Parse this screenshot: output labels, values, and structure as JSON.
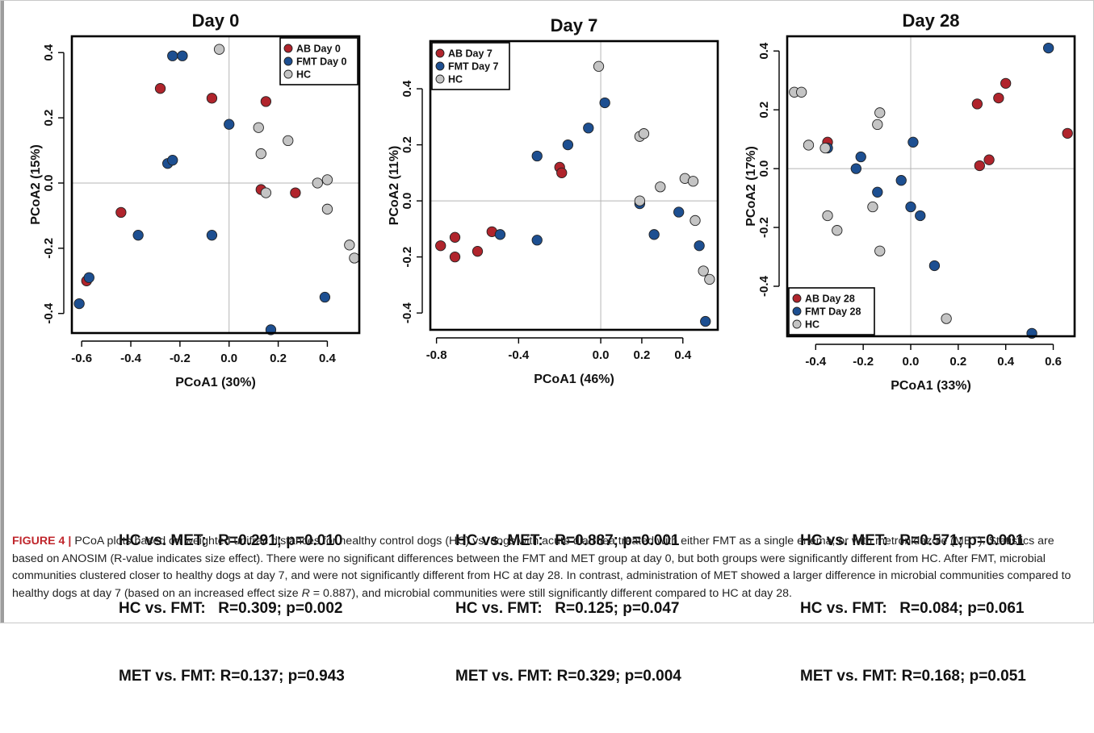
{
  "chart_data": [
    {
      "type": "scatter",
      "title": "Day 0",
      "xlabel": "PCoA1 (30%)",
      "ylabel": "PCoA2 (15%)",
      "xlim": [
        -0.64,
        0.53
      ],
      "ylim": [
        -0.46,
        0.45
      ],
      "xticks": [
        -0.6,
        -0.4,
        -0.2,
        0.0,
        0.2,
        0.4
      ],
      "xtick_labels": [
        "-0.6",
        "-0.4",
        "-0.2",
        "0.0",
        "0.2",
        "0.4"
      ],
      "yticks": [
        -0.4,
        -0.2,
        0.0,
        0.2,
        0.4
      ],
      "ytick_labels": [
        "-0.4",
        "-0.2",
        "0.0",
        "0.2",
        "0.4"
      ],
      "grid": false,
      "reference_lines": "x=0 and y=0",
      "legend_position": "top-right",
      "series": [
        {
          "name": "AB Day 0",
          "color": "#b0242c",
          "points": [
            [
              -0.28,
              0.29
            ],
            [
              -0.07,
              0.26
            ],
            [
              0.15,
              0.25
            ],
            [
              -0.44,
              -0.09
            ],
            [
              -0.58,
              -0.3
            ],
            [
              0.13,
              -0.02
            ],
            [
              0.27,
              -0.03
            ]
          ]
        },
        {
          "name": "FMT Day 0",
          "color": "#1d4f91",
          "points": [
            [
              -0.23,
              0.39
            ],
            [
              -0.19,
              0.39
            ],
            [
              0.0,
              0.18
            ],
            [
              -0.25,
              0.06
            ],
            [
              -0.23,
              0.07
            ],
            [
              -0.37,
              -0.16
            ],
            [
              -0.07,
              -0.16
            ],
            [
              -0.57,
              -0.29
            ],
            [
              -0.61,
              -0.37
            ],
            [
              0.39,
              -0.35
            ],
            [
              0.17,
              -0.45
            ]
          ]
        },
        {
          "name": "HC",
          "color": "#c4c4c4",
          "points": [
            [
              -0.04,
              0.41
            ],
            [
              0.12,
              0.17
            ],
            [
              0.24,
              0.13
            ],
            [
              0.13,
              0.09
            ],
            [
              0.36,
              0.0
            ],
            [
              0.4,
              0.01
            ],
            [
              0.15,
              -0.03
            ],
            [
              0.4,
              -0.08
            ],
            [
              0.49,
              -0.19
            ],
            [
              0.51,
              -0.23
            ]
          ]
        }
      ]
    },
    {
      "type": "scatter",
      "title": "Day 7",
      "xlabel": "PCoA1 (46%)",
      "ylabel": "PCoA2 (11%)",
      "xlim": [
        -0.83,
        0.57
      ],
      "ylim": [
        -0.46,
        0.57
      ],
      "xticks": [
        -0.8,
        -0.4,
        0.0,
        0.2,
        0.4
      ],
      "xtick_labels": [
        "-0.8",
        "-0.4",
        "0.0",
        "0.2",
        "0.4"
      ],
      "yticks": [
        -0.4,
        -0.2,
        0.0,
        0.2,
        0.4
      ],
      "ytick_labels": [
        "-0.4",
        "-0.2",
        "0.0",
        "0.2",
        "0.4"
      ],
      "grid": false,
      "reference_lines": "x=0 and y=0",
      "legend_position": "top-left",
      "series": [
        {
          "name": "AB Day 7",
          "color": "#b0242c",
          "points": [
            [
              -0.2,
              0.12
            ],
            [
              -0.19,
              0.1
            ],
            [
              -0.53,
              -0.11
            ],
            [
              -0.6,
              -0.18
            ],
            [
              -0.71,
              -0.13
            ],
            [
              -0.78,
              -0.16
            ],
            [
              -0.71,
              -0.2
            ]
          ]
        },
        {
          "name": "FMT Day 7",
          "color": "#1d4f91",
          "points": [
            [
              0.02,
              0.35
            ],
            [
              -0.06,
              0.26
            ],
            [
              -0.16,
              0.2
            ],
            [
              -0.31,
              0.16
            ],
            [
              -0.49,
              -0.12
            ],
            [
              -0.31,
              -0.14
            ],
            [
              0.19,
              -0.01
            ],
            [
              0.38,
              -0.04
            ],
            [
              0.26,
              -0.12
            ],
            [
              0.48,
              -0.16
            ],
            [
              0.51,
              -0.43
            ]
          ]
        },
        {
          "name": "HC",
          "color": "#c4c4c4",
          "points": [
            [
              -0.01,
              0.48
            ],
            [
              0.19,
              0.23
            ],
            [
              0.21,
              0.24
            ],
            [
              0.29,
              0.05
            ],
            [
              0.41,
              0.08
            ],
            [
              0.45,
              0.07
            ],
            [
              0.19,
              0.0
            ],
            [
              0.46,
              -0.07
            ],
            [
              0.5,
              -0.25
            ],
            [
              0.53,
              -0.28
            ]
          ]
        }
      ]
    },
    {
      "type": "scatter",
      "title": "Day 28",
      "xlabel": "PCoA1 (33%)",
      "ylabel": "PCoA2 (17%)",
      "xlim": [
        -0.52,
        0.69
      ],
      "ylim": [
        -0.57,
        0.45
      ],
      "xticks": [
        -0.4,
        -0.2,
        0.0,
        0.2,
        0.4,
        0.6
      ],
      "xtick_labels": [
        "-0.4",
        "-0.2",
        "0.0",
        "0.2",
        "0.4",
        "0.6"
      ],
      "yticks": [
        -0.4,
        -0.2,
        0.0,
        0.2,
        0.4
      ],
      "ytick_labels": [
        "-0.4",
        "-0.2",
        "0.0",
        "0.2",
        "0.4"
      ],
      "grid": false,
      "reference_lines": "x=0 and y=0",
      "legend_position": "bottom-left",
      "series": [
        {
          "name": "AB Day 28",
          "color": "#b0242c",
          "points": [
            [
              0.4,
              0.29
            ],
            [
              0.28,
              0.22
            ],
            [
              0.37,
              0.24
            ],
            [
              0.66,
              0.12
            ],
            [
              0.33,
              0.03
            ],
            [
              0.29,
              0.01
            ],
            [
              -0.35,
              0.09
            ]
          ]
        },
        {
          "name": "FMT Day 28",
          "color": "#1d4f91",
          "points": [
            [
              0.58,
              0.41
            ],
            [
              0.01,
              0.09
            ],
            [
              -0.35,
              0.07
            ],
            [
              -0.21,
              0.04
            ],
            [
              -0.23,
              0.0
            ],
            [
              -0.04,
              -0.04
            ],
            [
              -0.14,
              -0.08
            ],
            [
              0.0,
              -0.13
            ],
            [
              0.04,
              -0.16
            ],
            [
              0.1,
              -0.33
            ],
            [
              0.51,
              -0.56
            ]
          ]
        },
        {
          "name": "HC",
          "color": "#c4c4c4",
          "points": [
            [
              -0.49,
              0.26
            ],
            [
              -0.46,
              0.26
            ],
            [
              -0.13,
              0.19
            ],
            [
              -0.14,
              0.15
            ],
            [
              -0.43,
              0.08
            ],
            [
              -0.36,
              0.07
            ],
            [
              -0.16,
              -0.13
            ],
            [
              -0.35,
              -0.16
            ],
            [
              -0.31,
              -0.21
            ],
            [
              -0.13,
              -0.28
            ],
            [
              0.15,
              -0.51
            ]
          ]
        }
      ]
    }
  ],
  "stats": [
    {
      "rows": [
        {
          "label": "HC vs. MET:",
          "value": "R=0.291; p=0.010"
        },
        {
          "label": "HC vs. FMT:",
          "value": "R=0.309; p=0.002"
        },
        {
          "label": "MET vs. FMT:",
          "value": "R=0.137; p=0.943"
        }
      ]
    },
    {
      "rows": [
        {
          "label": "HC vs. MET:",
          "value": "R=0.887; p=0.001"
        },
        {
          "label": "HC vs. FMT:",
          "value": "R=0.125; p=0.047"
        },
        {
          "label": "MET vs. FMT:",
          "value": "R=0.329; p=0.004"
        }
      ]
    },
    {
      "rows": [
        {
          "label": "HC vs. MET:",
          "value": "R=0.571; p=0.001"
        },
        {
          "label": "HC vs. FMT:",
          "value": "R=0.084; p=0.061"
        },
        {
          "label": "MET vs. FMT:",
          "value": "R=0.168; p=0.051"
        }
      ]
    }
  ],
  "caption": {
    "label": "FIGURE 4",
    "separator": "|",
    "text_part1": "PCoA plots based on weighted unifrac distances for healthy control dogs (HC) vs. dogs with acute diarrhea treated with either FMT as a single enema, or with metronidazole (MET). Statistics are based on ANOSIM (R-value indicates size effect). There were no significant differences between the FMT and MET group at day 0, but both groups were significantly different from HC. After FMT, microbial communities clustered closer to healthy dogs at day 7, and were not significantly different from HC at day 28. In contrast, administration of MET showed a larger difference in microbial communities compared to healthy dogs at day 7 (based on an increased effect size ",
    "italic_r": "R",
    "text_part2": " = 0.887), and microbial communities were still significantly different compared to HC at day 28."
  }
}
